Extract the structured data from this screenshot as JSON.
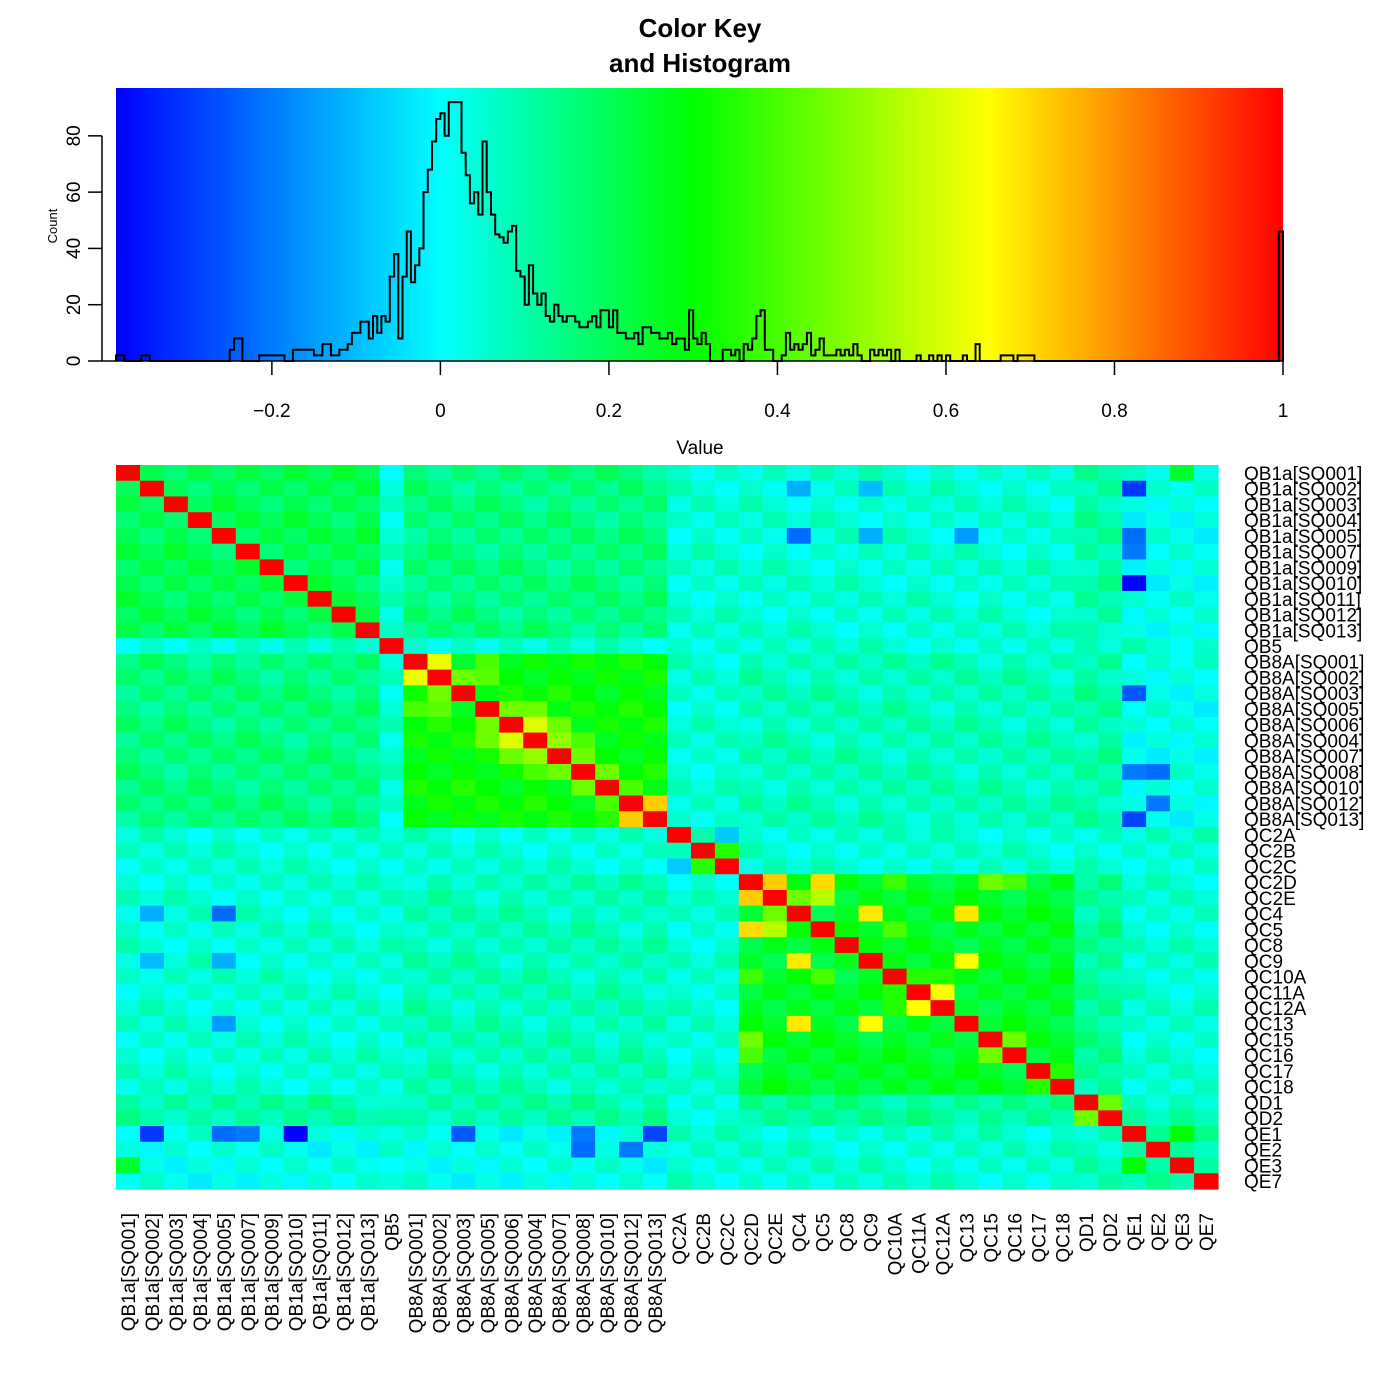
{
  "chart_data": [
    {
      "type": "bar",
      "role": "color-key-histogram",
      "title": "Color Key\nand Histogram",
      "title_lines": [
        "Color Key",
        "and Histogram"
      ],
      "xlabel": "Value",
      "ylabel": "Count",
      "xlim": [
        -0.385,
        1.0
      ],
      "ylim": [
        0,
        97
      ],
      "x_ticks": [
        -0.2,
        0,
        0.2,
        0.4,
        0.6,
        0.8,
        1
      ],
      "x_tick_labels": [
        "−0.2",
        "0",
        "0.2",
        "0.4",
        "0.6",
        "0.8",
        "1"
      ],
      "y_ticks": [
        0,
        20,
        40,
        60,
        80
      ],
      "y_tick_labels": [
        "0",
        "20",
        "40",
        "60",
        "80"
      ],
      "colors": [
        "#0000ff",
        "#00ffff",
        "#00ff00",
        "#ffff00",
        "#ff0000"
      ],
      "color_stops": [
        -0.385,
        0.0,
        0.3,
        0.65,
        1.0
      ],
      "hist_line_color": "#000000",
      "counts": [
        {
          "x": -0.385,
          "y": 2
        },
        {
          "x": -0.375,
          "y": 0
        },
        {
          "x": -0.355,
          "y": 2
        },
        {
          "x": -0.345,
          "y": 0
        },
        {
          "x": -0.25,
          "y": 4
        },
        {
          "x": -0.245,
          "y": 8
        },
        {
          "x": -0.235,
          "y": 0
        },
        {
          "x": -0.215,
          "y": 2
        },
        {
          "x": -0.185,
          "y": 0
        },
        {
          "x": -0.175,
          "y": 4
        },
        {
          "x": -0.15,
          "y": 2
        },
        {
          "x": -0.14,
          "y": 6
        },
        {
          "x": -0.13,
          "y": 2
        },
        {
          "x": -0.12,
          "y": 4
        },
        {
          "x": -0.11,
          "y": 6
        },
        {
          "x": -0.105,
          "y": 10
        },
        {
          "x": -0.095,
          "y": 14
        },
        {
          "x": -0.085,
          "y": 8
        },
        {
          "x": -0.08,
          "y": 16
        },
        {
          "x": -0.075,
          "y": 10
        },
        {
          "x": -0.07,
          "y": 16
        },
        {
          "x": -0.065,
          "y": 14
        },
        {
          "x": -0.06,
          "y": 30
        },
        {
          "x": -0.055,
          "y": 38
        },
        {
          "x": -0.05,
          "y": 8
        },
        {
          "x": -0.045,
          "y": 30
        },
        {
          "x": -0.04,
          "y": 46
        },
        {
          "x": -0.035,
          "y": 28
        },
        {
          "x": -0.03,
          "y": 34
        },
        {
          "x": -0.025,
          "y": 40
        },
        {
          "x": -0.02,
          "y": 60
        },
        {
          "x": -0.015,
          "y": 68
        },
        {
          "x": -0.01,
          "y": 78
        },
        {
          "x": -0.005,
          "y": 86
        },
        {
          "x": 0.0,
          "y": 88
        },
        {
          "x": 0.005,
          "y": 80
        },
        {
          "x": 0.01,
          "y": 92
        },
        {
          "x": 0.015,
          "y": 92
        },
        {
          "x": 0.025,
          "y": 74
        },
        {
          "x": 0.03,
          "y": 66
        },
        {
          "x": 0.035,
          "y": 56
        },
        {
          "x": 0.04,
          "y": 60
        },
        {
          "x": 0.045,
          "y": 52
        },
        {
          "x": 0.05,
          "y": 78
        },
        {
          "x": 0.055,
          "y": 60
        },
        {
          "x": 0.06,
          "y": 52
        },
        {
          "x": 0.065,
          "y": 45
        },
        {
          "x": 0.07,
          "y": 44
        },
        {
          "x": 0.075,
          "y": 42
        },
        {
          "x": 0.08,
          "y": 46
        },
        {
          "x": 0.085,
          "y": 48
        },
        {
          "x": 0.09,
          "y": 32
        },
        {
          "x": 0.095,
          "y": 30
        },
        {
          "x": 0.1,
          "y": 20
        },
        {
          "x": 0.105,
          "y": 34
        },
        {
          "x": 0.11,
          "y": 24
        },
        {
          "x": 0.115,
          "y": 20
        },
        {
          "x": 0.12,
          "y": 24
        },
        {
          "x": 0.125,
          "y": 16
        },
        {
          "x": 0.13,
          "y": 14
        },
        {
          "x": 0.135,
          "y": 20
        },
        {
          "x": 0.14,
          "y": 16
        },
        {
          "x": 0.145,
          "y": 14
        },
        {
          "x": 0.15,
          "y": 16
        },
        {
          "x": 0.16,
          "y": 14
        },
        {
          "x": 0.165,
          "y": 12
        },
        {
          "x": 0.175,
          "y": 14
        },
        {
          "x": 0.18,
          "y": 16
        },
        {
          "x": 0.185,
          "y": 12
        },
        {
          "x": 0.19,
          "y": 18
        },
        {
          "x": 0.2,
          "y": 12
        },
        {
          "x": 0.205,
          "y": 18
        },
        {
          "x": 0.21,
          "y": 10
        },
        {
          "x": 0.22,
          "y": 8
        },
        {
          "x": 0.23,
          "y": 10
        },
        {
          "x": 0.235,
          "y": 6
        },
        {
          "x": 0.24,
          "y": 12
        },
        {
          "x": 0.25,
          "y": 10
        },
        {
          "x": 0.26,
          "y": 8
        },
        {
          "x": 0.27,
          "y": 10
        },
        {
          "x": 0.275,
          "y": 6
        },
        {
          "x": 0.28,
          "y": 8
        },
        {
          "x": 0.29,
          "y": 4
        },
        {
          "x": 0.295,
          "y": 18
        },
        {
          "x": 0.3,
          "y": 8
        },
        {
          "x": 0.305,
          "y": 6
        },
        {
          "x": 0.31,
          "y": 10
        },
        {
          "x": 0.315,
          "y": 6
        },
        {
          "x": 0.32,
          "y": 0
        },
        {
          "x": 0.335,
          "y": 4
        },
        {
          "x": 0.345,
          "y": 2
        },
        {
          "x": 0.35,
          "y": 4
        },
        {
          "x": 0.355,
          "y": 0
        },
        {
          "x": 0.36,
          "y": 6
        },
        {
          "x": 0.365,
          "y": 4
        },
        {
          "x": 0.37,
          "y": 8
        },
        {
          "x": 0.375,
          "y": 16
        },
        {
          "x": 0.38,
          "y": 18
        },
        {
          "x": 0.385,
          "y": 4
        },
        {
          "x": 0.395,
          "y": 0
        },
        {
          "x": 0.405,
          "y": 2
        },
        {
          "x": 0.41,
          "y": 10
        },
        {
          "x": 0.415,
          "y": 4
        },
        {
          "x": 0.42,
          "y": 6
        },
        {
          "x": 0.425,
          "y": 4
        },
        {
          "x": 0.43,
          "y": 6
        },
        {
          "x": 0.435,
          "y": 10
        },
        {
          "x": 0.44,
          "y": 2
        },
        {
          "x": 0.445,
          "y": 4
        },
        {
          "x": 0.45,
          "y": 8
        },
        {
          "x": 0.455,
          "y": 2
        },
        {
          "x": 0.47,
          "y": 4
        },
        {
          "x": 0.475,
          "y": 2
        },
        {
          "x": 0.48,
          "y": 4
        },
        {
          "x": 0.485,
          "y": 2
        },
        {
          "x": 0.49,
          "y": 6
        },
        {
          "x": 0.495,
          "y": 2
        },
        {
          "x": 0.5,
          "y": 0
        },
        {
          "x": 0.51,
          "y": 4
        },
        {
          "x": 0.515,
          "y": 2
        },
        {
          "x": 0.52,
          "y": 4
        },
        {
          "x": 0.525,
          "y": 2
        },
        {
          "x": 0.53,
          "y": 4
        },
        {
          "x": 0.535,
          "y": 0
        },
        {
          "x": 0.54,
          "y": 4
        },
        {
          "x": 0.545,
          "y": 0
        },
        {
          "x": 0.565,
          "y": 2
        },
        {
          "x": 0.57,
          "y": 0
        },
        {
          "x": 0.58,
          "y": 2
        },
        {
          "x": 0.585,
          "y": 0
        },
        {
          "x": 0.59,
          "y": 2
        },
        {
          "x": 0.595,
          "y": 0
        },
        {
          "x": 0.6,
          "y": 2
        },
        {
          "x": 0.605,
          "y": 0
        },
        {
          "x": 0.62,
          "y": 2
        },
        {
          "x": 0.625,
          "y": 0
        },
        {
          "x": 0.635,
          "y": 6
        },
        {
          "x": 0.64,
          "y": 0
        },
        {
          "x": 0.665,
          "y": 2
        },
        {
          "x": 0.68,
          "y": 0
        },
        {
          "x": 0.685,
          "y": 2
        },
        {
          "x": 0.705,
          "y": 0
        },
        {
          "x": 0.995,
          "y": 46
        },
        {
          "x": 1.0,
          "y": 46
        }
      ]
    },
    {
      "type": "heatmap",
      "role": "correlation-matrix",
      "row_labels": [
        "QB1a[SQ001]",
        "QB1a[SQ002]",
        "QB1a[SQ003]",
        "QB1a[SQ004]",
        "QB1a[SQ005]",
        "QB1a[SQ007]",
        "QB1a[SQ009]",
        "QB1a[SQ010]",
        "QB1a[SQ011]",
        "QB1a[SQ012]",
        "QB1a[SQ013]",
        "QB5",
        "QB8A[SQ001]",
        "QB8A[SQ002]",
        "QB8A[SQ003]",
        "QB8A[SQ005]",
        "QB8A[SQ006]",
        "QB8A[SQ004]",
        "QB8A[SQ007]",
        "QB8A[SQ008]",
        "QB8A[SQ010]",
        "QB8A[SQ012]",
        "QB8A[SQ013]",
        "QC2A",
        "QC2B",
        "QC2C",
        "QC2D",
        "QC2E",
        "QC4",
        "QC5",
        "QC8",
        "QC9",
        "QC10A",
        "QC11A",
        "QC12A",
        "QC13",
        "QC15",
        "QC16",
        "QC17",
        "QC18",
        "QD1",
        "QD2",
        "QE1",
        "QE2",
        "QE3",
        "QE7"
      ],
      "col_labels": [
        "QB1a[SQ001]",
        "QB1a[SQ002]",
        "QB1a[SQ003]",
        "QB1a[SQ004]",
        "QB1a[SQ005]",
        "QB1a[SQ007]",
        "QB1a[SQ009]",
        "QB1a[SQ010]",
        "QB1a[SQ011]",
        "QB1a[SQ012]",
        "QB1a[SQ013]",
        "QB5",
        "QB8A[SQ001]",
        "QB8A[SQ002]",
        "QB8A[SQ003]",
        "QB8A[SQ005]",
        "QB8A[SQ006]",
        "QB8A[SQ004]",
        "QB8A[SQ007]",
        "QB8A[SQ008]",
        "QB8A[SQ010]",
        "QB8A[SQ012]",
        "QB8A[SQ013]",
        "QC2A",
        "QC2B",
        "QC2C",
        "QC2D",
        "QC2E",
        "QC4",
        "QC5",
        "QC8",
        "QC9",
        "QC10A",
        "QC11A",
        "QC12A",
        "QC13",
        "QC15",
        "QC16",
        "QC17",
        "QC18",
        "QD1",
        "QD2",
        "QE1",
        "QE2",
        "QE3",
        "QE7"
      ],
      "group_ranges": [
        [
          0,
          10
        ],
        [
          11,
          11
        ],
        [
          12,
          22
        ],
        [
          23,
          25
        ],
        [
          26,
          39
        ],
        [
          40,
          41
        ],
        [
          42,
          45
        ]
      ],
      "group_within": [
        0.2,
        1.0,
        0.3,
        0.1,
        0.25,
        0.4,
        0.1
      ],
      "group_between": [
        [
          0.2,
          0.05,
          0.15,
          0.05,
          0.05,
          0.1,
          0.02
        ],
        [
          0.05,
          1.0,
          0.05,
          0.05,
          0.05,
          0.05,
          0.05
        ],
        [
          0.15,
          0.05,
          0.3,
          0.05,
          0.08,
          0.1,
          0.02
        ],
        [
          0.05,
          0.05,
          0.05,
          0.1,
          0.05,
          0.05,
          0.05
        ],
        [
          0.05,
          0.05,
          0.08,
          0.05,
          0.25,
          0.12,
          0.05
        ],
        [
          0.1,
          0.05,
          0.1,
          0.05,
          0.12,
          0.4,
          0.08
        ],
        [
          0.02,
          0.05,
          0.02,
          0.05,
          0.05,
          0.08,
          0.1
        ]
      ],
      "cell_overrides": [
        {
          "r": 12,
          "c": 13,
          "v": 0.62
        },
        {
          "r": 13,
          "c": 14,
          "v": 0.45
        },
        {
          "r": 15,
          "c": 16,
          "v": 0.45
        },
        {
          "r": 16,
          "c": 17,
          "v": 0.6
        },
        {
          "r": 17,
          "c": 18,
          "v": 0.5
        },
        {
          "r": 18,
          "c": 19,
          "v": 0.45
        },
        {
          "r": 19,
          "c": 20,
          "v": 0.45
        },
        {
          "r": 20,
          "c": 21,
          "v": 0.4
        },
        {
          "r": 21,
          "c": 22,
          "v": 0.72
        },
        {
          "r": 15,
          "c": 17,
          "v": 0.45
        },
        {
          "r": 16,
          "c": 18,
          "v": 0.45
        },
        {
          "r": 17,
          "c": 19,
          "v": 0.4
        },
        {
          "r": 12,
          "c": 15,
          "v": 0.4
        },
        {
          "r": 13,
          "c": 15,
          "v": 0.42
        },
        {
          "r": 26,
          "c": 27,
          "v": 0.72
        },
        {
          "r": 26,
          "c": 29,
          "v": 0.7
        },
        {
          "r": 27,
          "c": 29,
          "v": 0.55
        },
        {
          "r": 28,
          "c": 31,
          "v": 0.68
        },
        {
          "r": 28,
          "c": 35,
          "v": 0.68
        },
        {
          "r": 31,
          "c": 35,
          "v": 0.65
        },
        {
          "r": 33,
          "c": 34,
          "v": 0.65
        },
        {
          "r": 32,
          "c": 33,
          "v": 0.35
        },
        {
          "r": 36,
          "c": 37,
          "v": 0.45
        },
        {
          "r": 27,
          "c": 28,
          "v": 0.45
        },
        {
          "r": 29,
          "c": 32,
          "v": 0.4
        },
        {
          "r": 32,
          "c": 34,
          "v": 0.35
        },
        {
          "r": 26,
          "c": 32,
          "v": 0.38
        },
        {
          "r": 26,
          "c": 36,
          "v": 0.45
        },
        {
          "r": 26,
          "c": 37,
          "v": 0.4
        },
        {
          "r": 38,
          "c": 39,
          "v": 0.35
        },
        {
          "r": 40,
          "c": 41,
          "v": 0.45
        },
        {
          "r": 24,
          "c": 25,
          "v": 0.35
        },
        {
          "r": 23,
          "c": 25,
          "v": -0.08
        },
        {
          "r": 1,
          "c": 42,
          "v": -0.3
        },
        {
          "r": 7,
          "c": 42,
          "v": -0.38
        },
        {
          "r": 4,
          "c": 42,
          "v": -0.22
        },
        {
          "r": 5,
          "c": 42,
          "v": -0.2
        },
        {
          "r": 14,
          "c": 42,
          "v": -0.25
        },
        {
          "r": 22,
          "c": 42,
          "v": -0.28
        },
        {
          "r": 19,
          "c": 42,
          "v": -0.2
        },
        {
          "r": 19,
          "c": 43,
          "v": -0.22
        },
        {
          "r": 21,
          "c": 43,
          "v": -0.2
        },
        {
          "r": 4,
          "c": 28,
          "v": -0.22
        },
        {
          "r": 1,
          "c": 28,
          "v": -0.12
        },
        {
          "r": 4,
          "c": 35,
          "v": -0.15
        },
        {
          "r": 1,
          "c": 31,
          "v": -0.1
        },
        {
          "r": 4,
          "c": 31,
          "v": -0.12
        },
        {
          "r": 0,
          "c": 44,
          "v": 0.25
        },
        {
          "r": 42,
          "c": 44,
          "v": 0.3
        }
      ]
    }
  ]
}
